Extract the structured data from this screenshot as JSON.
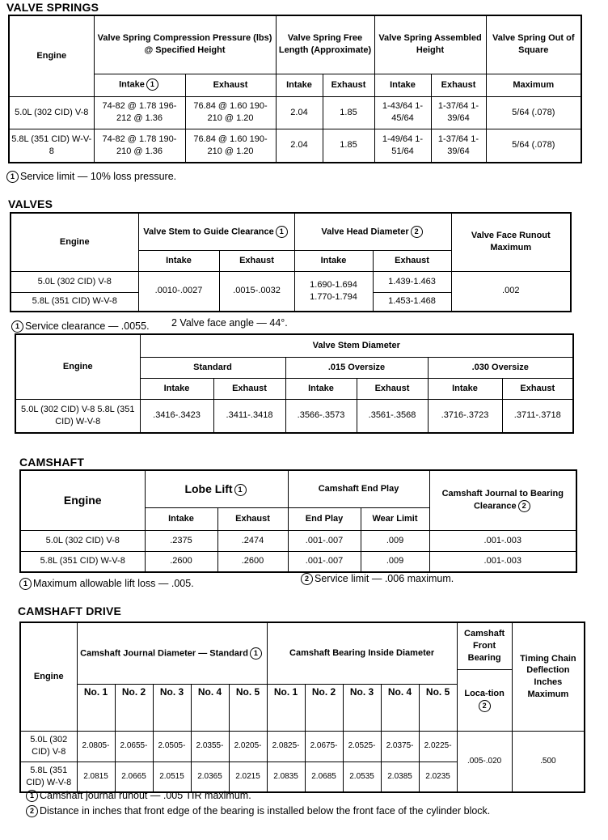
{
  "valve_springs": {
    "title": "VALVE SPRINGS",
    "headers": {
      "engine": "Engine",
      "compression": "Valve Spring Compression Pressure (lbs) @ Specified Height",
      "free_length": "Valve Spring Free Length (Approximate)",
      "assembled": "Valve Spring Assembled Height",
      "out_of_square": "Valve Spring Out of Square",
      "intake": "Intake",
      "exhaust": "Exhaust",
      "maximum": "Maximum"
    },
    "footnote_marks": {
      "one": "1",
      "two": "2"
    },
    "rows": [
      {
        "engine": "5.0L (302 CID) V-8",
        "comp_intake": "74-82 @ 1.78 196-212 @ 1.36",
        "comp_exhaust": "76.84 @ 1.60 190-210 @ 1.20",
        "free_intake": "2.04",
        "free_exhaust": "1.85",
        "asm_intake": "1-43/64 1-45/64",
        "asm_exhaust": "1-37/64 1-39/64",
        "square": "5/64 (.078)"
      },
      {
        "engine": "5.8L (351 CID) W-V-8",
        "comp_intake": "74-82 @ 1.78 190-210 @ 1.36",
        "comp_exhaust": "76.84 @ 1.60 190-210 @ 1.20",
        "free_intake": "2.04",
        "free_exhaust": "1.85",
        "asm_intake": "1-49/64 1-51/64",
        "asm_exhaust": "1-37/64 1-39/64",
        "square": "5/64 (.078)"
      }
    ],
    "footnote": "Service limit — 10% loss pressure."
  },
  "valves": {
    "title": "VALVES",
    "headers": {
      "engine": "Engine",
      "stem_guide": "Valve Stem to Guide Clearance",
      "head_diameter": "Valve Head Diameter",
      "face_runout": "Valve Face Runout Maximum",
      "intake": "Intake",
      "exhaust": "Exhaust"
    },
    "engines": [
      "5.0L (302 CID) V-8",
      "5.8L (351 CID) W-V-8"
    ],
    "stem_guide_intake": ".0010-.0027",
    "stem_guide_exhaust": ".0015-.0032",
    "head_intake": "1.690-1.694 1.770-1.794",
    "head_exhaust": [
      "1.439-1.463",
      "1.453-1.468"
    ],
    "face_runout": ".002",
    "footnote1": "Service clearance — .0055.",
    "footnote2": "2 Valve face angle — 44°.",
    "stem_diameter": {
      "title": "Valve Stem Diameter",
      "engine": "Engine",
      "groups": [
        "Standard",
        ".015 Oversize",
        ".030 Oversize"
      ],
      "intake": "Intake",
      "exhaust": "Exhaust",
      "engines": "5.0L (302 CID) V-8 5.8L (351 CID) W-V-8",
      "values": [
        ".3416-.3423",
        ".3411-.3418",
        ".3566-.3573",
        ".3561-.3568",
        ".3716-.3723",
        ".3711-.3718"
      ]
    }
  },
  "camshaft": {
    "title": "CAMSHAFT",
    "headers": {
      "engine": "Engine",
      "lobe_lift": "Lobe Lift",
      "end_play_group": "Camshaft End Play",
      "journal_clearance": "Camshaft Journal to Bearing Clearance",
      "intake": "Intake",
      "exhaust": "Exhaust",
      "end_play": "End Play",
      "wear_limit": "Wear Limit"
    },
    "rows": [
      {
        "engine": "5.0L (302 CID) V-8",
        "intake": ".2375",
        "exhaust": ".2474",
        "end_play": ".001-.007",
        "wear": ".009",
        "clearance": ".001-.003"
      },
      {
        "engine": "5.8L (351 CID) W-V-8",
        "intake": ".2600",
        "exhaust": ".2600",
        "end_play": ".001-.007",
        "wear": ".009",
        "clearance": ".001-.003"
      }
    ],
    "footnote1": "Maximum allowable lift loss — .005.",
    "footnote2": "Service limit — .006 maximum."
  },
  "camshaft_drive": {
    "title": "CAMSHAFT DRIVE",
    "headers": {
      "engine": "Engine",
      "journal": "Camshaft Journal Diameter — Standard",
      "bearing": "Camshaft Bearing Inside Diameter",
      "front_bearing": "Camshaft Front Bearing",
      "location": "Loca-tion",
      "timing_chain": "Timing Chain Deflection Inches Maximum",
      "nos": [
        "No. 1",
        "No. 2",
        "No. 3",
        "No. 4",
        "No. 5"
      ]
    },
    "engines": [
      "5.0L (302 CID) V-8",
      "5.8L (351 CID) W-V-8"
    ],
    "journal_low": [
      "2.0805-",
      "2.0655-",
      "2.0505-",
      "2.0355-",
      "2.0205-"
    ],
    "journal_high": [
      "2.0815",
      "2.0665",
      "2.0515",
      "2.0365",
      "2.0215"
    ],
    "bearing_low": [
      "2.0825-",
      "2.0675-",
      "2.0525-",
      "2.0375-",
      "2.0225-"
    ],
    "bearing_high": [
      "2.0835",
      "2.0685",
      "2.0535",
      "2.0385",
      "2.0235"
    ],
    "location": ".005-.020",
    "deflection": ".500",
    "footnote1": "Camshaft journal runout — .005 TIR maximum.",
    "footnote2": "Distance in inches that front edge of the bearing is installed below the front face of the cylinder block."
  }
}
